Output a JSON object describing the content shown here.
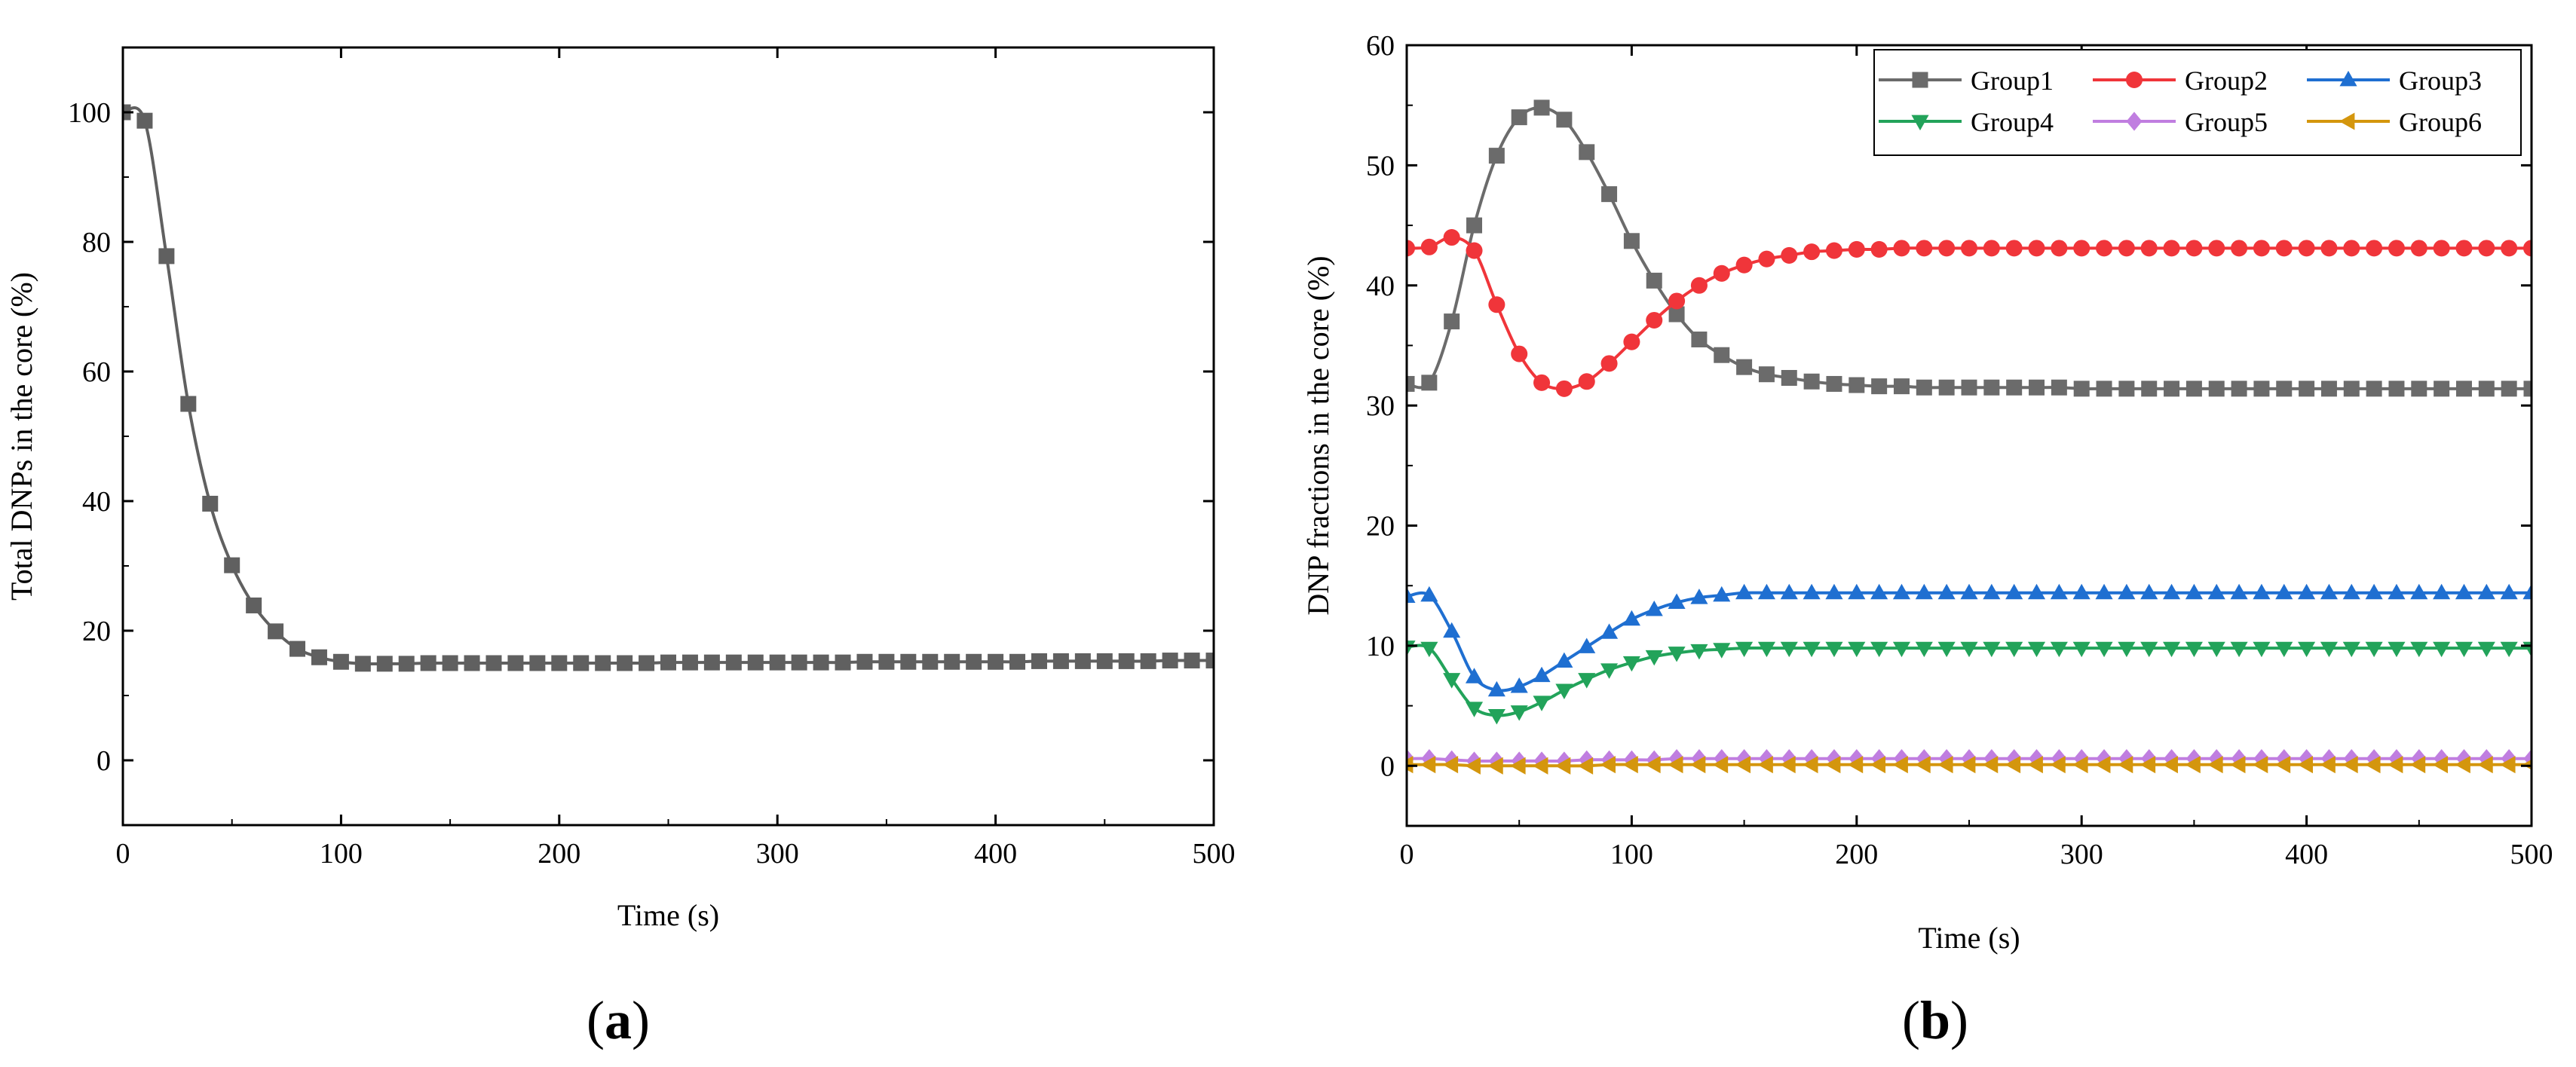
{
  "panels": [
    {
      "label": "(a)",
      "label_parts": [
        "(",
        "a",
        ")"
      ],
      "chart_data": {
        "type": "line",
        "title": "",
        "xlabel": "Time (s)",
        "ylabel": "Total DNPs in the core (%)",
        "xlim": [
          0,
          500
        ],
        "ylim": [
          -10,
          110
        ],
        "xticks": [
          0,
          100,
          200,
          300,
          400,
          500
        ],
        "yticks": [
          0,
          20,
          40,
          60,
          80,
          100
        ],
        "grid": false,
        "series": [
          {
            "name": "Total DNPs",
            "color": "#606060",
            "marker": "square",
            "x": [
              0,
              10,
              20,
              30,
              40,
              50,
              60,
              70,
              80,
              90,
              100,
              110,
              120,
              130,
              140,
              150,
              160,
              170,
              180,
              190,
              200,
              210,
              220,
              230,
              240,
              250,
              260,
              270,
              280,
              290,
              300,
              310,
              320,
              330,
              340,
              350,
              360,
              370,
              380,
              390,
              400,
              410,
              420,
              430,
              440,
              450,
              460,
              470,
              480,
              490,
              500
            ],
            "y": [
              100,
              98.7,
              77.8,
              55.0,
              39.6,
              30.1,
              23.9,
              19.9,
              17.2,
              15.9,
              15.2,
              14.9,
              14.9,
              14.9,
              15.0,
              15.0,
              15.0,
              15.0,
              15.0,
              15.0,
              15.0,
              15.0,
              15.0,
              15.0,
              15.0,
              15.1,
              15.1,
              15.1,
              15.1,
              15.1,
              15.1,
              15.1,
              15.1,
              15.1,
              15.2,
              15.2,
              15.2,
              15.2,
              15.2,
              15.2,
              15.2,
              15.2,
              15.3,
              15.3,
              15.3,
              15.3,
              15.3,
              15.3,
              15.4,
              15.4,
              15.4
            ]
          }
        ]
      }
    },
    {
      "label": "(b)",
      "label_parts": [
        "(",
        "b",
        ")"
      ],
      "chart_data": {
        "type": "line",
        "title": "",
        "xlabel": "Time (s)",
        "ylabel": "DNP fractions in the core (%)",
        "xlim": [
          0,
          500
        ],
        "ylim": [
          -5,
          60
        ],
        "xticks": [
          0,
          100,
          200,
          300,
          400,
          500
        ],
        "yticks": [
          0,
          10,
          20,
          30,
          40,
          50,
          60
        ],
        "grid": false,
        "legend_position": "top-right",
        "series": [
          {
            "name": "Group1",
            "color": "#6b6b6b",
            "marker": "square",
            "x": [
              0,
              10,
              20,
              30,
              40,
              50,
              60,
              70,
              80,
              90,
              100,
              110,
              120,
              130,
              140,
              150,
              160,
              170,
              180,
              190,
              200,
              210,
              220,
              230,
              240,
              250,
              260,
              270,
              280,
              290,
              300,
              310,
              320,
              330,
              340,
              350,
              360,
              370,
              380,
              390,
              400,
              410,
              420,
              430,
              440,
              450,
              460,
              470,
              480,
              490,
              500
            ],
            "y": [
              31.8,
              31.9,
              37.0,
              45.0,
              50.8,
              54.0,
              54.8,
              53.8,
              51.1,
              47.6,
              43.7,
              40.4,
              37.6,
              35.5,
              34.2,
              33.2,
              32.6,
              32.3,
              32.0,
              31.8,
              31.7,
              31.6,
              31.6,
              31.5,
              31.5,
              31.5,
              31.5,
              31.5,
              31.5,
              31.5,
              31.4,
              31.4,
              31.4,
              31.4,
              31.4,
              31.4,
              31.4,
              31.4,
              31.4,
              31.4,
              31.4,
              31.4,
              31.4,
              31.4,
              31.4,
              31.4,
              31.4,
              31.4,
              31.4,
              31.4,
              31.4
            ]
          },
          {
            "name": "Group2",
            "color": "#f0353a",
            "marker": "circle",
            "x": [
              0,
              10,
              20,
              30,
              40,
              50,
              60,
              70,
              80,
              90,
              100,
              110,
              120,
              130,
              140,
              150,
              160,
              170,
              180,
              190,
              200,
              210,
              220,
              230,
              240,
              250,
              260,
              270,
              280,
              290,
              300,
              310,
              320,
              330,
              340,
              350,
              360,
              370,
              380,
              390,
              400,
              410,
              420,
              430,
              440,
              450,
              460,
              470,
              480,
              490,
              500
            ],
            "y": [
              43.1,
              43.2,
              44.0,
              42.9,
              38.4,
              34.3,
              31.9,
              31.4,
              32.0,
              33.5,
              35.3,
              37.1,
              38.7,
              40.0,
              41.0,
              41.7,
              42.2,
              42.5,
              42.8,
              42.9,
              43.0,
              43.0,
              43.1,
              43.1,
              43.1,
              43.1,
              43.1,
              43.1,
              43.1,
              43.1,
              43.1,
              43.1,
              43.1,
              43.1,
              43.1,
              43.1,
              43.1,
              43.1,
              43.1,
              43.1,
              43.1,
              43.1,
              43.1,
              43.1,
              43.1,
              43.1,
              43.1,
              43.1,
              43.1,
              43.1,
              43.1
            ]
          },
          {
            "name": "Group3",
            "color": "#1f6fd1",
            "marker": "triangle-up",
            "x": [
              0,
              10,
              20,
              30,
              40,
              50,
              60,
              70,
              80,
              90,
              100,
              110,
              120,
              130,
              140,
              150,
              160,
              170,
              180,
              190,
              200,
              210,
              220,
              230,
              240,
              250,
              260,
              270,
              280,
              290,
              300,
              310,
              320,
              330,
              340,
              350,
              360,
              370,
              380,
              390,
              400,
              410,
              420,
              430,
              440,
              450,
              460,
              470,
              480,
              490,
              500
            ],
            "y": [
              14.1,
              14.2,
              11.2,
              7.4,
              6.3,
              6.6,
              7.5,
              8.7,
              9.9,
              11.1,
              12.2,
              13.0,
              13.6,
              14.0,
              14.2,
              14.4,
              14.4,
              14.4,
              14.4,
              14.4,
              14.4,
              14.4,
              14.4,
              14.4,
              14.4,
              14.4,
              14.4,
              14.4,
              14.4,
              14.4,
              14.4,
              14.4,
              14.4,
              14.4,
              14.4,
              14.4,
              14.4,
              14.4,
              14.4,
              14.4,
              14.4,
              14.4,
              14.4,
              14.4,
              14.4,
              14.4,
              14.4,
              14.4,
              14.4,
              14.4,
              14.4
            ]
          },
          {
            "name": "Group4",
            "color": "#22a35a",
            "marker": "triangle-down",
            "x": [
              0,
              10,
              20,
              30,
              40,
              50,
              60,
              70,
              80,
              90,
              100,
              110,
              120,
              130,
              140,
              150,
              160,
              170,
              180,
              190,
              200,
              210,
              220,
              230,
              240,
              250,
              260,
              270,
              280,
              290,
              300,
              310,
              320,
              330,
              340,
              350,
              360,
              370,
              380,
              390,
              400,
              410,
              420,
              430,
              440,
              450,
              460,
              470,
              480,
              490,
              500
            ],
            "y": [
              9.9,
              9.8,
              7.2,
              4.8,
              4.2,
              4.5,
              5.3,
              6.3,
              7.2,
              8.0,
              8.6,
              9.1,
              9.4,
              9.6,
              9.7,
              9.8,
              9.8,
              9.8,
              9.8,
              9.8,
              9.8,
              9.8,
              9.8,
              9.8,
              9.8,
              9.8,
              9.8,
              9.8,
              9.8,
              9.8,
              9.8,
              9.8,
              9.8,
              9.8,
              9.8,
              9.8,
              9.8,
              9.8,
              9.8,
              9.8,
              9.8,
              9.8,
              9.8,
              9.8,
              9.8,
              9.8,
              9.8,
              9.8,
              9.8,
              9.8,
              9.8
            ]
          },
          {
            "name": "Group5",
            "color": "#c07ee0",
            "marker": "diamond",
            "x": [
              0,
              10,
              20,
              30,
              40,
              50,
              60,
              70,
              80,
              90,
              100,
              110,
              120,
              130,
              140,
              150,
              160,
              170,
              180,
              190,
              200,
              210,
              220,
              230,
              240,
              250,
              260,
              270,
              280,
              290,
              300,
              310,
              320,
              330,
              340,
              350,
              360,
              370,
              380,
              390,
              400,
              410,
              420,
              430,
              440,
              450,
              460,
              470,
              480,
              490,
              500
            ],
            "y": [
              0.6,
              0.6,
              0.5,
              0.4,
              0.4,
              0.4,
              0.4,
              0.4,
              0.5,
              0.5,
              0.5,
              0.5,
              0.6,
              0.6,
              0.6,
              0.6,
              0.6,
              0.6,
              0.6,
              0.6,
              0.6,
              0.6,
              0.6,
              0.6,
              0.6,
              0.6,
              0.6,
              0.6,
              0.6,
              0.6,
              0.6,
              0.6,
              0.6,
              0.6,
              0.6,
              0.6,
              0.6,
              0.6,
              0.6,
              0.6,
              0.6,
              0.6,
              0.6,
              0.6,
              0.6,
              0.6,
              0.6,
              0.6,
              0.6,
              0.6,
              0.6
            ]
          },
          {
            "name": "Group6",
            "color": "#d4960d",
            "marker": "triangle-left",
            "x": [
              0,
              10,
              20,
              30,
              40,
              50,
              60,
              70,
              80,
              90,
              100,
              110,
              120,
              130,
              140,
              150,
              160,
              170,
              180,
              190,
              200,
              210,
              220,
              230,
              240,
              250,
              260,
              270,
              280,
              290,
              300,
              310,
              320,
              330,
              340,
              350,
              360,
              370,
              380,
              390,
              400,
              410,
              420,
              430,
              440,
              450,
              460,
              470,
              480,
              490,
              500
            ],
            "y": [
              0.1,
              0.1,
              0.1,
              0.0,
              0.0,
              0.0,
              0.0,
              0.0,
              0.0,
              0.1,
              0.1,
              0.1,
              0.1,
              0.1,
              0.1,
              0.1,
              0.1,
              0.1,
              0.1,
              0.1,
              0.1,
              0.1,
              0.1,
              0.1,
              0.1,
              0.1,
              0.1,
              0.1,
              0.1,
              0.1,
              0.1,
              0.1,
              0.1,
              0.1,
              0.1,
              0.1,
              0.1,
              0.1,
              0.1,
              0.1,
              0.1,
              0.1,
              0.1,
              0.1,
              0.1,
              0.1,
              0.1,
              0.1,
              0.1,
              0.1,
              0.1
            ]
          }
        ]
      }
    }
  ]
}
